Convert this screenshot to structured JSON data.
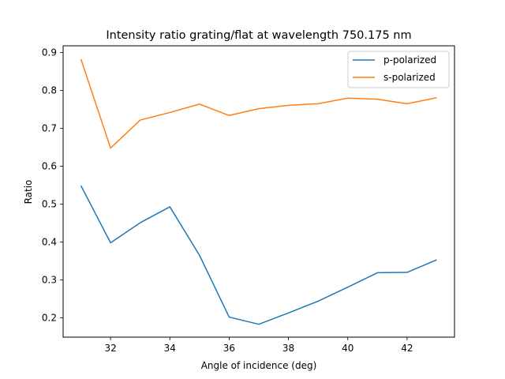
{
  "chart_data": {
    "type": "line",
    "title": "Intensity ratio grating/flat at wavelength 750.175 nm",
    "xlabel": "Angle of incidence (deg)",
    "ylabel": "Ratio",
    "x": [
      31,
      32,
      33,
      34,
      35,
      36,
      37,
      38,
      39,
      40,
      41,
      42,
      43
    ],
    "xlim": [
      30.4,
      43.6
    ],
    "ylim": [
      0.149,
      0.918
    ],
    "xticks": [
      32,
      34,
      36,
      38,
      40,
      42
    ],
    "yticks": [
      0.2,
      0.3,
      0.4,
      0.5,
      0.6,
      0.7,
      0.8,
      0.9
    ],
    "xtick_labels": [
      "32",
      "34",
      "36",
      "38",
      "40",
      "42"
    ],
    "ytick_labels": [
      "0.2",
      "0.3",
      "0.4",
      "0.5",
      "0.6",
      "0.7",
      "0.8",
      "0.9"
    ],
    "grid": false,
    "legend_position": "top-right",
    "series": [
      {
        "name": "p-polarized",
        "color": "#1f77b4",
        "values": [
          0.549,
          0.398,
          0.451,
          0.493,
          0.365,
          0.202,
          0.183,
          0.213,
          0.244,
          0.281,
          0.319,
          0.32,
          0.353
        ]
      },
      {
        "name": "s-polarized",
        "color": "#ff7f0e",
        "values": [
          0.883,
          0.648,
          0.722,
          0.742,
          0.764,
          0.734,
          0.752,
          0.761,
          0.765,
          0.78,
          0.777,
          0.765,
          0.781
        ]
      }
    ]
  }
}
